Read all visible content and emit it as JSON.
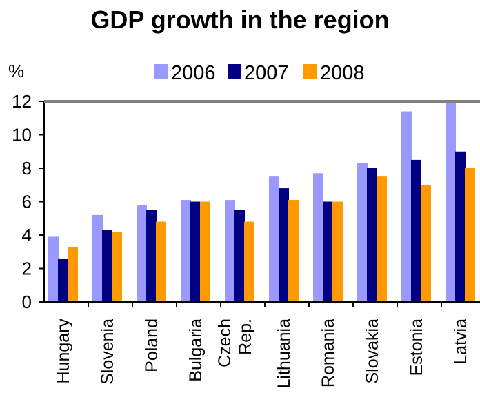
{
  "chart_data": {
    "type": "bar",
    "title": "GDP growth in the region",
    "ylabel": "%",
    "xlabel": "",
    "ylim": [
      0,
      12
    ],
    "yticks": [
      0,
      2,
      4,
      6,
      8,
      10,
      12
    ],
    "grid": false,
    "legend_position": "top",
    "categories": [
      [
        "Hungary"
      ],
      [
        "Slovenia"
      ],
      [
        "Poland"
      ],
      [
        "Bulgaria"
      ],
      [
        "Czech",
        "Rep."
      ],
      [
        "Lithuania"
      ],
      [
        "Romania"
      ],
      [
        "Slovakia"
      ],
      [
        "Estonia"
      ],
      [
        "Latvia"
      ]
    ],
    "series": [
      {
        "name": "2006",
        "color": "#9999ff",
        "values": [
          3.9,
          5.2,
          5.8,
          6.1,
          6.1,
          7.5,
          7.7,
          8.3,
          11.4,
          11.9
        ]
      },
      {
        "name": "2007",
        "color": "#000080",
        "values": [
          2.6,
          4.3,
          5.5,
          6.0,
          5.5,
          6.8,
          6.0,
          8.0,
          8.5,
          9.0
        ]
      },
      {
        "name": "2008",
        "color": "#ff9900",
        "values": [
          3.3,
          4.2,
          4.8,
          6.0,
          4.8,
          6.1,
          6.0,
          7.5,
          7.0,
          8.0
        ]
      }
    ]
  }
}
